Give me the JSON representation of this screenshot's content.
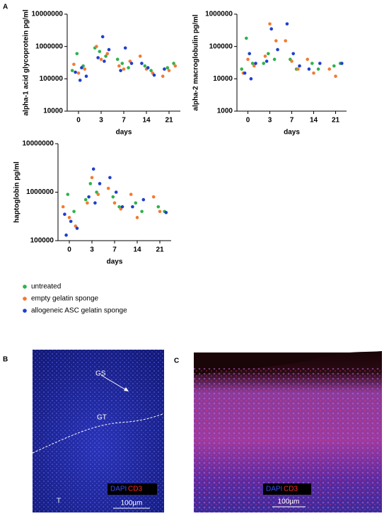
{
  "chart_data": [
    {
      "type": "scatter",
      "ylabel": "alpha-1 acid glycoprotein pg/ml",
      "xlabel": "days",
      "categories": [
        "0",
        "3",
        "7",
        "14",
        "21"
      ],
      "log_y": true,
      "ylim": [
        10000,
        10000000
      ],
      "yticks": [
        10000,
        100000,
        1000000,
        10000000
      ],
      "series": [
        {
          "color": "#2db34a",
          "x": [
            "0",
            "0",
            "0",
            "3",
            "3",
            "3",
            "7",
            "7",
            "7",
            "14",
            "14",
            "21",
            "21"
          ],
          "values": [
            600000,
            250000,
            180000,
            700000,
            500000,
            900000,
            300000,
            220000,
            400000,
            250000,
            180000,
            220000,
            300000
          ]
        },
        {
          "color": "#f47a30",
          "x": [
            "0",
            "0",
            "0",
            "3",
            "3",
            "3",
            "7",
            "7",
            "7",
            "14",
            "14",
            "14",
            "21",
            "21",
            "21"
          ],
          "values": [
            150000,
            200000,
            280000,
            400000,
            600000,
            1000000,
            200000,
            350000,
            250000,
            500000,
            200000,
            150000,
            120000,
            180000,
            250000
          ]
        },
        {
          "color": "#1f3fcf",
          "x": [
            "0",
            "0",
            "0",
            "0",
            "3",
            "3",
            "3",
            "3",
            "7",
            "7",
            "7",
            "14",
            "14",
            "14",
            "21"
          ],
          "values": [
            90000,
            120000,
            160000,
            220000,
            2000000,
            800000,
            450000,
            350000,
            900000,
            300000,
            180000,
            300000,
            220000,
            130000,
            200000
          ]
        }
      ]
    },
    {
      "type": "scatter",
      "ylabel": "alpha-2 macroglobulin pg/ml",
      "xlabel": "days",
      "categories": [
        "0",
        "3",
        "7",
        "14",
        "21"
      ],
      "log_y": true,
      "ylim": [
        1000,
        1000000
      ],
      "yticks": [
        1000,
        10000,
        100000,
        1000000
      ],
      "series": [
        {
          "color": "#2db34a",
          "x": [
            "0",
            "0",
            "0",
            "3",
            "3",
            "3",
            "7",
            "7",
            "14",
            "14",
            "21",
            "21"
          ],
          "values": [
            180000,
            30000,
            20000,
            60000,
            40000,
            30000,
            40000,
            20000,
            30000,
            20000,
            25000,
            30000
          ]
        },
        {
          "color": "#f47a30",
          "x": [
            "0",
            "0",
            "0",
            "3",
            "3",
            "3",
            "7",
            "7",
            "7",
            "14",
            "14",
            "21",
            "21"
          ],
          "values": [
            40000,
            25000,
            15000,
            500000,
            150000,
            50000,
            150000,
            35000,
            20000,
            40000,
            15000,
            20000,
            12000
          ]
        },
        {
          "color": "#1f3fcf",
          "x": [
            "0",
            "0",
            "0",
            "0",
            "3",
            "3",
            "3",
            "7",
            "7",
            "7",
            "14",
            "14",
            "21"
          ],
          "values": [
            60000,
            30000,
            15000,
            10000,
            350000,
            80000,
            35000,
            500000,
            60000,
            25000,
            30000,
            20000,
            30000
          ]
        }
      ]
    },
    {
      "type": "scatter",
      "ylabel": "haptoglobin pg/ml",
      "xlabel": "days",
      "categories": [
        "0",
        "3",
        "7",
        "14",
        "21"
      ],
      "log_y": true,
      "ylim": [
        100000,
        10000000
      ],
      "yticks": [
        100000,
        1000000,
        10000000
      ],
      "series": [
        {
          "color": "#2db34a",
          "x": [
            "0",
            "0",
            "3",
            "3",
            "3",
            "7",
            "7",
            "14",
            "14",
            "21",
            "21"
          ],
          "values": [
            900000,
            400000,
            1500000,
            1000000,
            700000,
            800000,
            500000,
            600000,
            400000,
            500000,
            400000
          ]
        },
        {
          "color": "#f47a30",
          "x": [
            "0",
            "0",
            "0",
            "3",
            "3",
            "3",
            "7",
            "7",
            "7",
            "14",
            "14",
            "21",
            "21"
          ],
          "values": [
            500000,
            300000,
            200000,
            2000000,
            900000,
            600000,
            1200000,
            600000,
            450000,
            900000,
            300000,
            800000,
            400000
          ]
        },
        {
          "color": "#1f3fcf",
          "x": [
            "0",
            "0",
            "0",
            "0",
            "3",
            "3",
            "3",
            "3",
            "7",
            "7",
            "7",
            "14",
            "14",
            "21"
          ],
          "values": [
            350000,
            250000,
            180000,
            130000,
            3000000,
            1500000,
            800000,
            600000,
            2000000,
            1000000,
            500000,
            700000,
            500000,
            380000
          ]
        }
      ]
    }
  ],
  "legend": [
    {
      "name": "untreated",
      "color": "#2db34a"
    },
    {
      "name": "empty gelatin sponge",
      "color": "#f47a30"
    },
    {
      "name": "allogeneic ASC  gelatin sponge",
      "color": "#1f3fcf"
    }
  ],
  "panels": {
    "a": {
      "label": "A"
    },
    "b": {
      "label": "B",
      "gs": "GS",
      "gt": "GT",
      "t": "T",
      "dapi": "DAPI",
      "cd3": "CD3",
      "scale": "100µm"
    },
    "c": {
      "label": "C",
      "dapi": "DAPI",
      "cd3": "CD3",
      "scale": "100µm"
    }
  }
}
